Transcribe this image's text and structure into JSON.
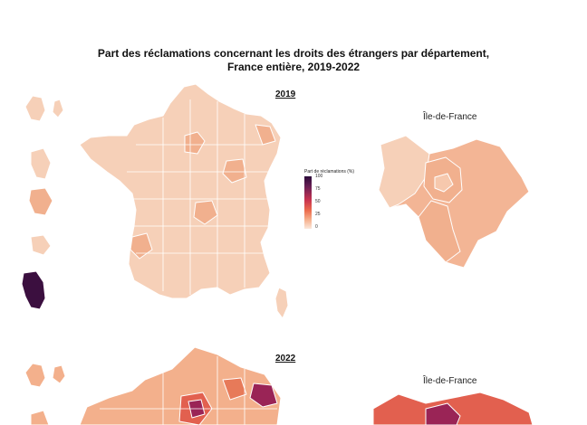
{
  "title": {
    "line1": "Part des réclamations concernant les droits des étrangers par département,",
    "line2": "France entière, 2019-2022"
  },
  "maps": [
    {
      "year": "2019",
      "region_label": "Île-de-France"
    },
    {
      "year": "2022",
      "region_label": "Île-de-France"
    }
  ],
  "legend": {
    "title": "Part de réclamations (%)",
    "ticks": [
      "100",
      "75",
      "50",
      "25",
      "0"
    ],
    "colors": {
      "low": "#f6d0b8",
      "mid_low": "#f3b08c",
      "mid": "#e2604f",
      "high": "#9a2456",
      "max": "#3b0f3f"
    }
  }
}
